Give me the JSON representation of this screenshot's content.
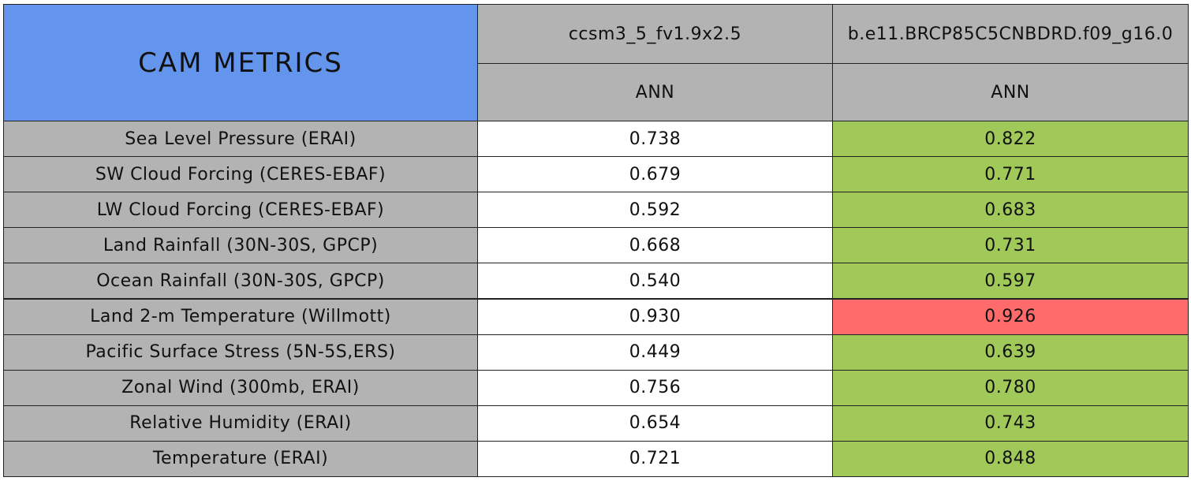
{
  "table": {
    "title": "CAM METRICS",
    "title_color": "#6495ed",
    "header_color": "#b3b3b3",
    "columns": [
      {
        "name": "ccsm3_5_fv1.9x2.5",
        "period": "ANN"
      },
      {
        "name": "b.e11.BRCP85C5CNBDRD.f09_g16.0",
        "period": "ANN"
      }
    ],
    "rows": [
      {
        "label": "Sea Level Pressure (ERAI)",
        "values": [
          "0.738",
          "0.822"
        ],
        "colors": [
          "#ffffff",
          "#a0c95a"
        ]
      },
      {
        "label": "SW Cloud Forcing (CERES-EBAF)",
        "values": [
          "0.679",
          "0.771"
        ],
        "colors": [
          "#ffffff",
          "#a0c95a"
        ]
      },
      {
        "label": "LW Cloud Forcing (CERES-EBAF)",
        "values": [
          "0.592",
          "0.683"
        ],
        "colors": [
          "#ffffff",
          "#a0c95a"
        ]
      },
      {
        "label": "Land Rainfall (30N-30S, GPCP)",
        "values": [
          "0.668",
          "0.731"
        ],
        "colors": [
          "#ffffff",
          "#a0c95a"
        ]
      },
      {
        "label": "Ocean Rainfall (30N-30S, GPCP)",
        "values": [
          "0.540",
          "0.597"
        ],
        "colors": [
          "#ffffff",
          "#a0c95a"
        ]
      },
      {
        "label": "Land 2-m Temperature (Willmott)",
        "values": [
          "0.930",
          "0.926"
        ],
        "colors": [
          "#ffffff",
          "#ff6b6b"
        ]
      },
      {
        "label": "Pacific Surface Stress (5N-5S,ERS)",
        "values": [
          "0.449",
          "0.639"
        ],
        "colors": [
          "#ffffff",
          "#a0c95a"
        ]
      },
      {
        "label": "Zonal Wind (300mb, ERAI)",
        "values": [
          "0.756",
          "0.780"
        ],
        "colors": [
          "#ffffff",
          "#a0c95a"
        ]
      },
      {
        "label": "Relative Humidity (ERAI)",
        "values": [
          "0.654",
          "0.743"
        ],
        "colors": [
          "#ffffff",
          "#a0c95a"
        ]
      },
      {
        "label": "Temperature (ERAI)",
        "values": [
          "0.721",
          "0.848"
        ],
        "colors": [
          "#ffffff",
          "#a0c95a"
        ]
      }
    ]
  }
}
